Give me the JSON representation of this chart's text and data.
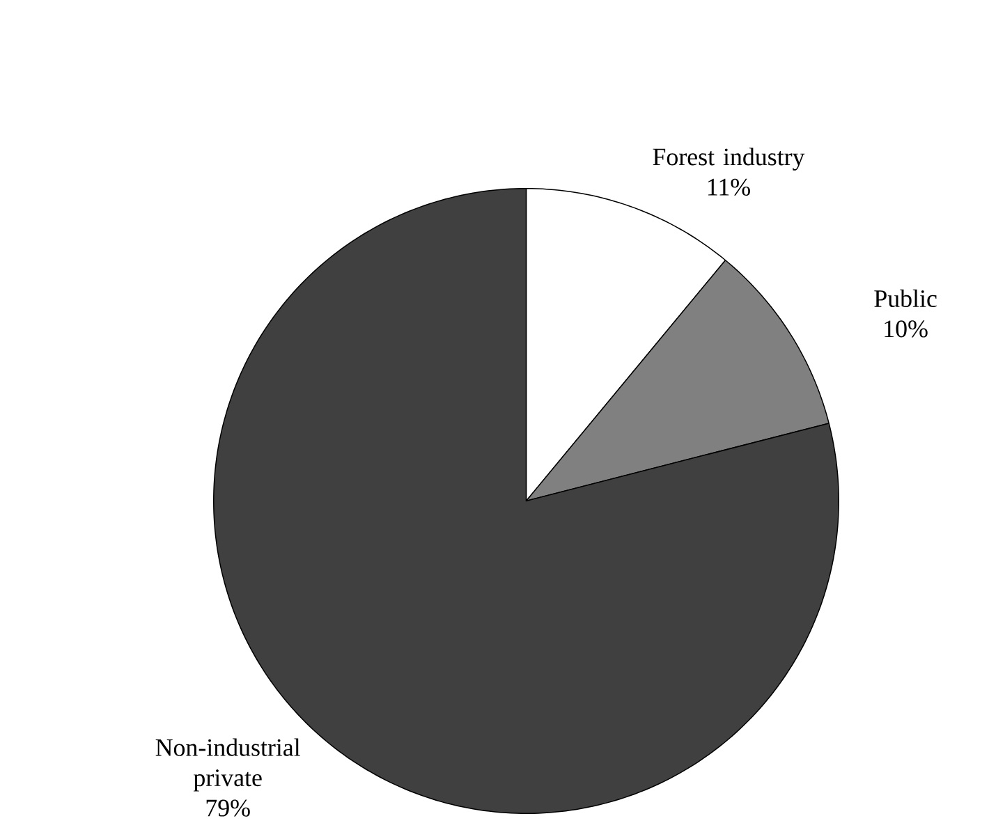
{
  "chart_data": {
    "type": "pie",
    "categories": [
      "Forest industry",
      "Public",
      "Non-industrial private"
    ],
    "values": [
      11,
      10,
      79
    ],
    "value_labels": [
      "11%",
      "10%",
      "79%"
    ],
    "colors": [
      "#ffffff",
      "#808080",
      "#404040"
    ]
  }
}
